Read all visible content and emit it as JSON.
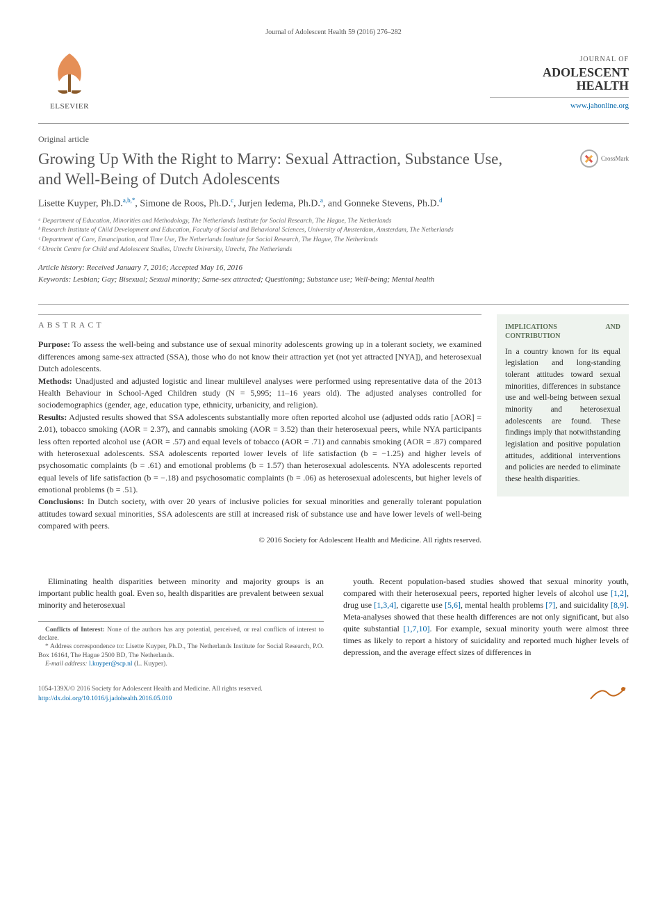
{
  "running_head": "Journal of Adolescent Health 59 (2016) 276–282",
  "publisher": {
    "name": "ELSEVIER",
    "logo_fill": "#e07b3a"
  },
  "journal": {
    "top": "JOURNAL OF",
    "main": "ADOLESCENT HEALTH",
    "url": "www.jahonline.org",
    "url_color": "#0066aa"
  },
  "article_type": "Original article",
  "title": "Growing Up With the Right to Marry: Sexual Attraction, Substance Use, and Well-Being of Dutch Adolescents",
  "crossmark_label": "CrossMark",
  "authors_html": "Lisette Kuyper, Ph.D.<span class='sup'>a,b,*</span>, Simone de Roos, Ph.D.<span class='sup'>c</span>, Jurjen Iedema, Ph.D.<span class='sup'>a</span>, and Gonneke Stevens, Ph.D.<span class='sup'>d</span>",
  "affiliations": [
    "ᵃ Department of Education, Minorities and Methodology, The Netherlands Institute for Social Research, The Hague, The Netherlands",
    "ᵇ Research Institute of Child Development and Education, Faculty of Social and Behavioral Sciences, University of Amsterdam, Amsterdam, The Netherlands",
    "ᶜ Department of Care, Emancipation, and Time Use, The Netherlands Institute for Social Research, The Hague, The Netherlands",
    "ᵈ Utrecht Centre for Child and Adolescent Studies, Utrecht University, Utrecht, The Netherlands"
  ],
  "history": "Article history: Received January 7, 2016; Accepted May 16, 2016",
  "keywords": "Keywords: Lesbian; Gay; Bisexual; Sexual minority; Same-sex attracted; Questioning; Substance use; Well-being; Mental health",
  "abstract": {
    "label": "ABSTRACT",
    "purpose_label": "Purpose:",
    "purpose": " To assess the well-being and substance use of sexual minority adolescents growing up in a tolerant society, we examined differences among same-sex attracted (SSA), those who do not know their attraction yet (not yet attracted [NYA]), and heterosexual Dutch adolescents.",
    "methods_label": "Methods:",
    "methods": " Unadjusted and adjusted logistic and linear multilevel analyses were performed using representative data of the 2013 Health Behaviour in School-Aged Children study (N = 5,995; 11–16 years old). The adjusted analyses controlled for sociodemographics (gender, age, education type, ethnicity, urbanicity, and religion).",
    "results_label": "Results:",
    "results": " Adjusted results showed that SSA adolescents substantially more often reported alcohol use (adjusted odds ratio [AOR] = 2.01), tobacco smoking (AOR = 2.37), and cannabis smoking (AOR = 3.52) than their heterosexual peers, while NYA participants less often reported alcohol use (AOR = .57) and equal levels of tobacco (AOR = .71) and cannabis smoking (AOR = .87) compared with heterosexual adolescents. SSA adolescents reported lower levels of life satisfaction (b = −1.25) and higher levels of psychosomatic complaints (b = .61) and emotional problems (b = 1.57) than heterosexual adolescents. NYA adolescents reported equal levels of life satisfaction (b = −.18) and psychosomatic complaints (b = .06) as heterosexual adolescents, but higher levels of emotional problems (b = .51).",
    "conclusions_label": "Conclusions:",
    "conclusions": " In Dutch society, with over 20 years of inclusive policies for sexual minorities and generally tolerant population attitudes toward sexual minorities, SSA adolescents are still at increased risk of substance use and have lower levels of well-being compared with peers.",
    "copyright": "© 2016 Society for Adolescent Health and Medicine. All rights reserved."
  },
  "sidebar": {
    "title": "IMPLICATIONS AND CONTRIBUTION",
    "text": "In a country known for its equal legislation and long-standing tolerant attitudes toward sexual minorities, differences in substance use and well-being between sexual minority and heterosexual adolescents are found. These findings imply that notwithstanding legislation and positive population attitudes, additional interventions and policies are needed to eliminate these health disparities.",
    "bg": "#eef3ee"
  },
  "body": {
    "p1": "Eliminating health disparities between minority and majority groups is an important public health goal. Even so, health disparities are prevalent between sexual minority and heterosexual",
    "p2_a": "youth. Recent population-based studies showed that sexual minority youth, compared with their heterosexual peers, reported higher levels of alcohol use ",
    "r1": "[1,2]",
    "p2_b": ", drug use ",
    "r2": "[1,3,4]",
    "p2_c": ", cigarette use ",
    "r3": "[5,6]",
    "p2_d": ", mental health problems ",
    "r4": "[7]",
    "p2_e": ", and suicidality ",
    "r5": "[8,9]",
    "p2_f": ". Meta-analyses showed that these health differences are not only significant, but also quite substantial ",
    "r6": "[1,7,10]",
    "p2_g": ". For example, sexual minority youth were almost three times as likely to report a history of suicidality and reported much higher levels of depression, and the average effect sizes of differences in"
  },
  "footnotes": {
    "coi_label": "Conflicts of Interest:",
    "coi": " None of the authors has any potential, perceived, or real conflicts of interest to declare.",
    "corr": "* Address correspondence to: Lisette Kuyper, Ph.D., The Netherlands Institute for Social Research, P.O. Box 16164, The Hague 2500 BD, The Netherlands.",
    "email_label": "E-mail address:",
    "email": " l.kuyper@scp.nl",
    "email_paren": " (L. Kuyper)."
  },
  "footer": {
    "left1": "1054-139X/© 2016 Society for Adolescent Health and Medicine. All rights reserved.",
    "left2": "http://dx.doi.org/10.1016/j.jadohealth.2016.05.010",
    "right_logo": ""
  },
  "colors": {
    "link": "#0066aa",
    "text": "#2a2a2a",
    "rule": "#999999"
  }
}
